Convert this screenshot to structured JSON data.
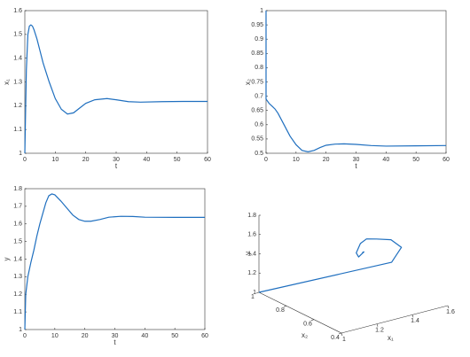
{
  "chart_data": [
    {
      "type": "line",
      "xlabel": "t",
      "ylabel": "x₁",
      "xlim": [
        0,
        60
      ],
      "ylim": [
        1,
        1.6
      ],
      "xticks": [
        0,
        10,
        20,
        30,
        40,
        50,
        60
      ],
      "yticks": [
        1,
        1.1,
        1.2,
        1.3,
        1.4,
        1.5,
        1.6
      ],
      "color": "#1f6fbf",
      "x": [
        0,
        0.5,
        1,
        1.5,
        2,
        2.5,
        3,
        4,
        5,
        6,
        8,
        10,
        12,
        14,
        16,
        18,
        20,
        23,
        27,
        30,
        34,
        38,
        45,
        52,
        60
      ],
      "values": [
        1,
        1.35,
        1.5,
        1.535,
        1.54,
        1.535,
        1.52,
        1.48,
        1.43,
        1.38,
        1.3,
        1.23,
        1.185,
        1.165,
        1.17,
        1.19,
        1.21,
        1.225,
        1.23,
        1.225,
        1.217,
        1.215,
        1.217,
        1.218,
        1.218
      ]
    },
    {
      "type": "line",
      "xlabel": "t",
      "ylabel": "x₂",
      "xlim": [
        0,
        60
      ],
      "ylim": [
        0.5,
        1
      ],
      "xticks": [
        0,
        10,
        20,
        30,
        40,
        50,
        60
      ],
      "yticks": [
        0.5,
        0.55,
        0.6,
        0.65,
        0.7,
        0.75,
        0.8,
        0.85,
        0.9,
        0.95,
        1
      ],
      "color": "#1f6fbf",
      "x": [
        0,
        0,
        1,
        2,
        3,
        4,
        6,
        8,
        10,
        12,
        14,
        16,
        18,
        20,
        23,
        26,
        30,
        35,
        40,
        50,
        60
      ],
      "values": [
        1,
        0.69,
        0.675,
        0.665,
        0.655,
        0.64,
        0.6,
        0.56,
        0.53,
        0.51,
        0.505,
        0.51,
        0.52,
        0.528,
        0.532,
        0.533,
        0.531,
        0.527,
        0.525,
        0.526,
        0.527
      ]
    },
    {
      "type": "line",
      "xlabel": "t",
      "ylabel": "y",
      "xlim": [
        0,
        60
      ],
      "ylim": [
        1,
        1.8
      ],
      "xticks": [
        0,
        10,
        20,
        30,
        40,
        50,
        60
      ],
      "yticks": [
        1,
        1.1,
        1.2,
        1.3,
        1.4,
        1.5,
        1.6,
        1.7,
        1.8
      ],
      "color": "#1f6fbf",
      "x": [
        0,
        0.3,
        1,
        2,
        3,
        4,
        5,
        6,
        7,
        8,
        9,
        10,
        12,
        14,
        16,
        18,
        20,
        22,
        25,
        28,
        32,
        36,
        40,
        50,
        60
      ],
      "values": [
        1,
        1.2,
        1.3,
        1.38,
        1.45,
        1.53,
        1.6,
        1.66,
        1.72,
        1.76,
        1.77,
        1.765,
        1.73,
        1.69,
        1.65,
        1.625,
        1.615,
        1.615,
        1.625,
        1.638,
        1.643,
        1.642,
        1.638,
        1.637,
        1.637
      ]
    },
    {
      "type": "line3d",
      "xlabel": "x₁",
      "ylabel": "x₂",
      "zlabel": "y",
      "xlim": [
        1,
        1.6
      ],
      "ylim": [
        0.4,
        1
      ],
      "zlim": [
        1,
        1.8
      ],
      "xticks": [
        1,
        1.2,
        1.4,
        1.6
      ],
      "yticks": [
        0.4,
        0.6,
        0.8,
        1
      ],
      "zticks": [
        1,
        1.2,
        1.4,
        1.6,
        1.8
      ],
      "color": "#1f6fbf",
      "x": [
        1,
        1.5,
        1.54,
        1.45,
        1.33,
        1.25,
        1.2,
        1.165,
        1.19,
        1.23,
        1.22,
        1.215,
        1.22
      ],
      "y": [
        1,
        0.68,
        0.66,
        0.62,
        0.57,
        0.54,
        0.52,
        0.505,
        0.52,
        0.533,
        0.528,
        0.525,
        0.527
      ],
      "z": [
        1,
        1.3,
        1.45,
        1.6,
        1.7,
        1.76,
        1.75,
        1.68,
        1.615,
        1.64,
        1.645,
        1.638,
        1.638
      ]
    }
  ]
}
